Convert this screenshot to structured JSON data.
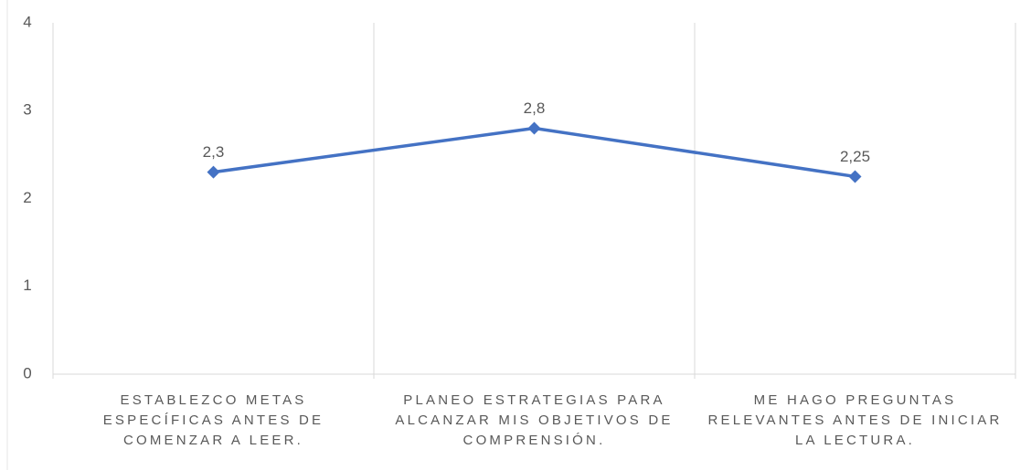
{
  "chart_data": {
    "type": "line",
    "categories": [
      "ESTABLEZCO METAS ESPECÍFICAS ANTES DE COMENZAR A LEER.",
      "PLANEO ESTRATEGIAS PARA ALCANZAR MIS OBJETIVOS DE COMPRENSIÓN.",
      "ME HAGO PREGUNTAS RELEVANTES ANTES DE INICIAR LA LECTURA."
    ],
    "values": [
      2.3,
      2.8,
      2.25
    ],
    "value_labels": [
      "2,3",
      "2,8",
      "2,25"
    ],
    "color": "#4472c4",
    "ylim": [
      0,
      4
    ],
    "yticks": [
      0,
      1,
      2,
      3,
      4
    ],
    "grid": true
  }
}
